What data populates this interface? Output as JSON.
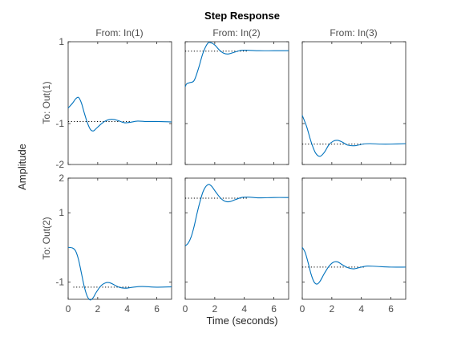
{
  "chart_data": {
    "type": "line",
    "title": "Step Response",
    "xlabel": "Time (seconds)",
    "ylabel": "Amplitude",
    "grid": false,
    "series_color": "#0072BD",
    "steady_state_line_style": "dotted",
    "column_titles": [
      "From: In(1)",
      "From: In(2)",
      "From: In(3)"
    ],
    "row_labels": [
      "To: Out(1)",
      "To: Out(2)"
    ],
    "x_ticks": [
      "0",
      "2",
      "4",
      "6"
    ],
    "xlim": [
      0,
      7
    ],
    "rows": [
      {
        "ylim": [
          -2,
          1
        ],
        "yticks": [
          1,
          -1,
          -2
        ],
        "ytick_labels": [
          "1",
          "-1",
          "-2"
        ]
      },
      {
        "ylim": [
          -1.5,
          2
        ],
        "yticks": [
          2,
          1,
          -1
        ],
        "ytick_labels": [
          "2",
          "1",
          "-1"
        ]
      }
    ],
    "panels": [
      {
        "row": 0,
        "col": 0,
        "name": "From: In(1) To: Out(1)",
        "steady_state": -0.95,
        "points": [
          [
            0,
            -0.62
          ],
          [
            0.3,
            -0.5
          ],
          [
            0.5,
            -0.4
          ],
          [
            0.7,
            -0.36
          ],
          [
            0.9,
            -0.5
          ],
          [
            1.1,
            -0.75
          ],
          [
            1.3,
            -0.98
          ],
          [
            1.5,
            -1.14
          ],
          [
            1.7,
            -1.18
          ],
          [
            1.9,
            -1.12
          ],
          [
            2.2,
            -1.02
          ],
          [
            2.5,
            -0.94
          ],
          [
            2.8,
            -0.9
          ],
          [
            3.1,
            -0.9
          ],
          [
            3.4,
            -0.93
          ],
          [
            3.8,
            -0.98
          ],
          [
            4.2,
            -0.97
          ],
          [
            4.7,
            -0.94
          ],
          [
            5.3,
            -0.95
          ],
          [
            6,
            -0.95
          ],
          [
            7,
            -0.96
          ]
        ]
      },
      {
        "row": 0,
        "col": 1,
        "name": "From: In(2) To: Out(1)",
        "steady_state": 0.77,
        "points": [
          [
            0,
            -0.1
          ],
          [
            0.1,
            -0.03
          ],
          [
            0.3,
            0.0
          ],
          [
            0.6,
            0.05
          ],
          [
            0.9,
            0.35
          ],
          [
            1.2,
            0.72
          ],
          [
            1.5,
            0.95
          ],
          [
            1.7,
            0.98
          ],
          [
            2.0,
            0.92
          ],
          [
            2.3,
            0.8
          ],
          [
            2.6,
            0.72
          ],
          [
            2.9,
            0.7
          ],
          [
            3.3,
            0.74
          ],
          [
            3.8,
            0.79
          ],
          [
            4.3,
            0.79
          ],
          [
            5,
            0.78
          ],
          [
            6,
            0.78
          ],
          [
            7,
            0.78
          ]
        ]
      },
      {
        "row": 0,
        "col": 2,
        "name": "From: In(3) To: Out(1)",
        "steady_state": -1.5,
        "points": [
          [
            0,
            -0.8
          ],
          [
            0.3,
            -1.08
          ],
          [
            0.6,
            -1.45
          ],
          [
            0.9,
            -1.72
          ],
          [
            1.2,
            -1.8
          ],
          [
            1.5,
            -1.7
          ],
          [
            1.8,
            -1.52
          ],
          [
            2.1,
            -1.43
          ],
          [
            2.4,
            -1.41
          ],
          [
            2.7,
            -1.45
          ],
          [
            3.1,
            -1.53
          ],
          [
            3.6,
            -1.54
          ],
          [
            4.1,
            -1.5
          ],
          [
            4.6,
            -1.49
          ],
          [
            5.3,
            -1.5
          ],
          [
            6,
            -1.5
          ],
          [
            7,
            -1.49
          ]
        ]
      },
      {
        "row": 1,
        "col": 0,
        "name": "From: In(1) To: Out(2)",
        "steady_state": -1.15,
        "points": [
          [
            0,
            0.0
          ],
          [
            0.3,
            -0.02
          ],
          [
            0.5,
            -0.1
          ],
          [
            0.7,
            -0.35
          ],
          [
            0.9,
            -0.75
          ],
          [
            1.1,
            -1.15
          ],
          [
            1.3,
            -1.42
          ],
          [
            1.5,
            -1.52
          ],
          [
            1.7,
            -1.45
          ],
          [
            1.9,
            -1.3
          ],
          [
            2.2,
            -1.12
          ],
          [
            2.5,
            -1.03
          ],
          [
            2.8,
            -1.02
          ],
          [
            3.1,
            -1.08
          ],
          [
            3.5,
            -1.16
          ],
          [
            3.9,
            -1.18
          ],
          [
            4.4,
            -1.15
          ],
          [
            5,
            -1.13
          ],
          [
            6,
            -1.15
          ],
          [
            7,
            -1.14
          ]
        ]
      },
      {
        "row": 1,
        "col": 1,
        "name": "From: In(2) To: Out(2)",
        "steady_state": 1.42,
        "points": [
          [
            0,
            0.04
          ],
          [
            0.2,
            0.12
          ],
          [
            0.4,
            0.3
          ],
          [
            0.6,
            0.6
          ],
          [
            0.8,
            0.98
          ],
          [
            1.0,
            1.32
          ],
          [
            1.2,
            1.6
          ],
          [
            1.4,
            1.76
          ],
          [
            1.6,
            1.82
          ],
          [
            1.8,
            1.76
          ],
          [
            2.1,
            1.58
          ],
          [
            2.4,
            1.42
          ],
          [
            2.7,
            1.33
          ],
          [
            3.0,
            1.32
          ],
          [
            3.4,
            1.38
          ],
          [
            3.8,
            1.44
          ],
          [
            4.3,
            1.45
          ],
          [
            5,
            1.43
          ],
          [
            6,
            1.44
          ],
          [
            7,
            1.44
          ]
        ]
      },
      {
        "row": 1,
        "col": 2,
        "name": "From: In(3) To: Out(2)",
        "steady_state": -0.57,
        "points": [
          [
            0,
            0.0
          ],
          [
            0.2,
            -0.15
          ],
          [
            0.4,
            -0.45
          ],
          [
            0.6,
            -0.78
          ],
          [
            0.8,
            -1.0
          ],
          [
            1.0,
            -1.06
          ],
          [
            1.2,
            -0.98
          ],
          [
            1.5,
            -0.75
          ],
          [
            1.8,
            -0.55
          ],
          [
            2.1,
            -0.43
          ],
          [
            2.4,
            -0.42
          ],
          [
            2.7,
            -0.5
          ],
          [
            3.1,
            -0.59
          ],
          [
            3.5,
            -0.62
          ],
          [
            3.9,
            -0.58
          ],
          [
            4.4,
            -0.54
          ],
          [
            5,
            -0.55
          ],
          [
            6,
            -0.57
          ],
          [
            7,
            -0.57
          ]
        ]
      }
    ]
  }
}
